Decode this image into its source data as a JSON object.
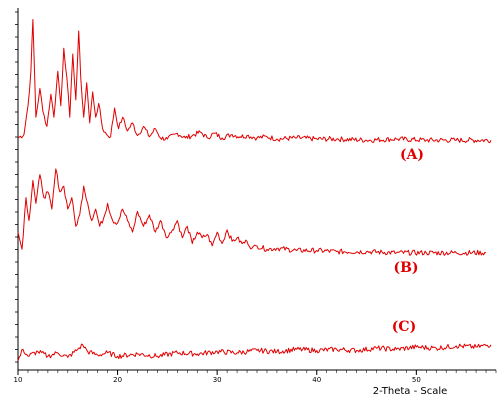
{
  "chart_data": {
    "type": "line",
    "title": "",
    "xlabel": "2-Theta - Scale",
    "ylabel": "",
    "xlim": [
      10,
      58
    ],
    "ylim": [
      0,
      3.15
    ],
    "grid": false,
    "legend": "none",
    "x_ticks": [
      10,
      20,
      30,
      40,
      50
    ],
    "x_tick_labels": [
      "10",
      "20",
      "30",
      "40",
      "50"
    ],
    "series_color": "#e00000",
    "series": [
      {
        "name": "(A)",
        "baseline": 2.0,
        "x": [
          10.0,
          10.6,
          11.0,
          11.3,
          11.5,
          11.8,
          12.2,
          12.5,
          12.9,
          13.3,
          13.6,
          14.0,
          14.3,
          14.6,
          14.9,
          15.2,
          15.5,
          15.8,
          16.1,
          16.3,
          16.6,
          16.9,
          17.2,
          17.5,
          17.8,
          18.1,
          18.5,
          18.9,
          19.3,
          19.7,
          20.1,
          20.5,
          21.0,
          21.5,
          22.0,
          22.6,
          23.2,
          23.8,
          24.3,
          25.0,
          26.0,
          26.8,
          27.5,
          28.3,
          29.0,
          29.7,
          30.5,
          31.5,
          32.3,
          33.0,
          34.0,
          35.0,
          36.0,
          38.0,
          40.0,
          42.0,
          45.0,
          48.0,
          51.0,
          54.0,
          57.5
        ],
        "y": [
          2.02,
          2.05,
          2.3,
          2.6,
          3.05,
          2.2,
          2.45,
          2.25,
          2.12,
          2.4,
          2.2,
          2.6,
          2.3,
          2.8,
          2.55,
          2.2,
          2.75,
          2.35,
          2.95,
          2.55,
          2.2,
          2.5,
          2.15,
          2.42,
          2.2,
          2.32,
          2.1,
          2.05,
          2.03,
          2.28,
          2.1,
          2.2,
          2.08,
          2.15,
          2.04,
          2.12,
          2.03,
          2.1,
          2.02,
          2.01,
          2.06,
          2.02,
          2.04,
          2.07,
          2.02,
          2.06,
          2.02,
          2.05,
          2.03,
          2.04,
          2.02,
          2.03,
          2.01,
          2.02,
          2.01,
          2.01,
          2.0,
          2.01,
          2.0,
          2.0,
          2.0
        ]
      },
      {
        "name": "(B)",
        "baseline": 1.0,
        "x": [
          10.0,
          10.4,
          10.8,
          11.1,
          11.5,
          11.8,
          12.2,
          12.6,
          13.0,
          13.4,
          13.8,
          14.2,
          14.6,
          15.0,
          15.4,
          15.8,
          16.2,
          16.6,
          17.0,
          17.4,
          17.8,
          18.2,
          18.6,
          19.0,
          19.5,
          20.0,
          20.5,
          21.0,
          21.5,
          22.0,
          22.6,
          23.2,
          23.8,
          24.3,
          25.0,
          25.5,
          26.0,
          26.5,
          27.0,
          27.5,
          28.0,
          28.5,
          29.0,
          29.5,
          30.0,
          30.5,
          31.0,
          31.5,
          32.0,
          32.5,
          33.0,
          33.5,
          34.0,
          35.0,
          36.0,
          38.0,
          40.0,
          42.0,
          45.0,
          48.0,
          51.0,
          54.0,
          57.0
        ],
        "y": [
          1.2,
          1.05,
          1.5,
          1.3,
          1.65,
          1.45,
          1.7,
          1.5,
          1.55,
          1.4,
          1.75,
          1.55,
          1.6,
          1.4,
          1.5,
          1.25,
          1.35,
          1.6,
          1.45,
          1.3,
          1.4,
          1.25,
          1.32,
          1.45,
          1.3,
          1.28,
          1.4,
          1.3,
          1.2,
          1.38,
          1.25,
          1.35,
          1.2,
          1.3,
          1.15,
          1.22,
          1.3,
          1.15,
          1.25,
          1.1,
          1.2,
          1.15,
          1.18,
          1.08,
          1.2,
          1.1,
          1.22,
          1.12,
          1.15,
          1.1,
          1.12,
          1.06,
          1.08,
          1.05,
          1.06,
          1.04,
          1.04,
          1.03,
          1.03,
          1.02,
          1.02,
          1.02,
          1.02
        ]
      },
      {
        "name": "(C)",
        "baseline": 0.1,
        "x": [
          10.0,
          10.5,
          11.0,
          12.0,
          13.0,
          14.0,
          15.0,
          16.0,
          16.5,
          17.0,
          18.0,
          19.0,
          20.0,
          22.0,
          24.0,
          26.0,
          28.0,
          30.0,
          32.0,
          34.0,
          36.0,
          38.0,
          40.0,
          42.0,
          44.0,
          46.0,
          48.0,
          50.0,
          52.0,
          54.0,
          56.0,
          57.5
        ],
        "y": [
          0.08,
          0.18,
          0.12,
          0.16,
          0.12,
          0.15,
          0.11,
          0.18,
          0.22,
          0.16,
          0.13,
          0.15,
          0.12,
          0.14,
          0.12,
          0.15,
          0.14,
          0.16,
          0.15,
          0.17,
          0.16,
          0.18,
          0.17,
          0.18,
          0.17,
          0.19,
          0.18,
          0.2,
          0.19,
          0.21,
          0.2,
          0.22
        ]
      }
    ]
  }
}
